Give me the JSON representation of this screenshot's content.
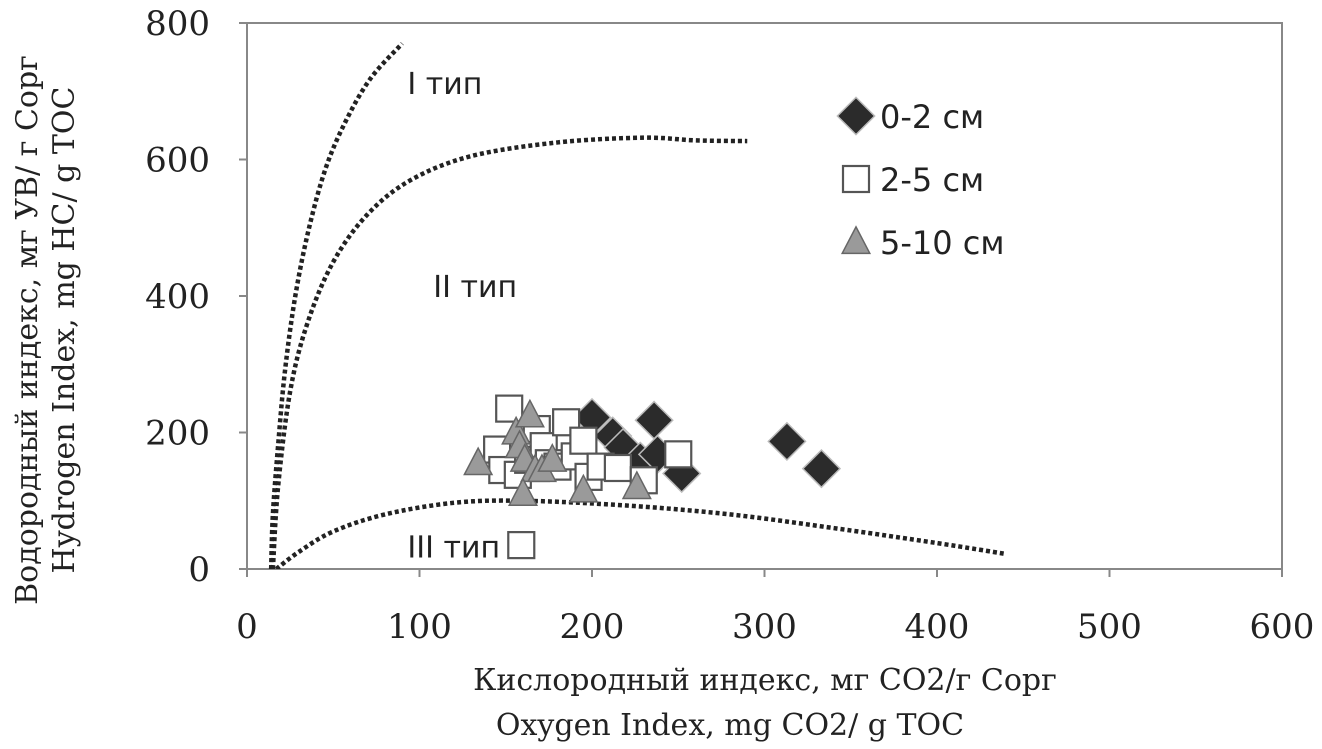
{
  "chart_data": {
    "type": "scatter",
    "xlabel": [
      "Кислородный индекс, мг CO2/г Сорг",
      "Oxygen Index, mg CO2/ g TOC"
    ],
    "ylabel": [
      "Водородный индекс, мг УВ/ г Сорг",
      "Hydrogen Index, mg HC/ g TOC"
    ],
    "xlim": [
      0,
      600
    ],
    "ylim": [
      0,
      800
    ],
    "x_ticks": [
      0,
      100,
      200,
      300,
      400,
      500,
      600
    ],
    "y_ticks": [
      0,
      200,
      400,
      600,
      800
    ],
    "x_tick_labels": [
      "0",
      "100",
      "200",
      "300",
      "400",
      "500",
      "600"
    ],
    "y_tick_labels": [
      "0",
      "200",
      "400",
      "600",
      "800"
    ],
    "grid": false,
    "legend_position": "upper-right",
    "annotations": [
      {
        "text": "I тип",
        "x": 93,
        "y": 712
      },
      {
        "text": "II тип",
        "x": 108,
        "y": 415
      },
      {
        "text": "III тип",
        "x": 93,
        "y": 33
      }
    ],
    "boundary_curves": [
      {
        "name": "type-I",
        "style": "dotted",
        "points": [
          [
            14,
            0
          ],
          [
            15,
            80
          ],
          [
            18,
            180
          ],
          [
            22,
            290
          ],
          [
            28,
            400
          ],
          [
            36,
            500
          ],
          [
            46,
            590
          ],
          [
            58,
            660
          ],
          [
            72,
            720
          ],
          [
            90,
            770
          ]
        ]
      },
      {
        "name": "type-II",
        "style": "dotted",
        "points": [
          [
            15,
            0
          ],
          [
            18,
            120
          ],
          [
            25,
            260
          ],
          [
            35,
            360
          ],
          [
            50,
            450
          ],
          [
            70,
            520
          ],
          [
            95,
            570
          ],
          [
            130,
            605
          ],
          [
            180,
            625
          ],
          [
            230,
            632
          ],
          [
            260,
            628
          ],
          [
            290,
            627
          ]
        ]
      },
      {
        "name": "type-III",
        "style": "dotted",
        "points": [
          [
            17,
            0
          ],
          [
            30,
            25
          ],
          [
            50,
            55
          ],
          [
            80,
            80
          ],
          [
            120,
            97
          ],
          [
            160,
            100
          ],
          [
            220,
            93
          ],
          [
            280,
            80
          ],
          [
            340,
            60
          ],
          [
            400,
            38
          ],
          [
            440,
            22
          ]
        ]
      }
    ],
    "series": [
      {
        "name": "0-2 см",
        "marker": "diamond",
        "color": "#2b2b2b",
        "points": [
          [
            200,
            222
          ],
          [
            212,
            195
          ],
          [
            218,
            178
          ],
          [
            228,
            158
          ],
          [
            236,
            218
          ],
          [
            238,
            168
          ],
          [
            252,
            140
          ],
          [
            313,
            187
          ],
          [
            333,
            147
          ]
        ]
      },
      {
        "name": "2-5 см",
        "marker": "square",
        "color": "#ffffff",
        "points": [
          [
            145,
            175
          ],
          [
            152,
            235
          ],
          [
            148,
            145
          ],
          [
            157,
            138
          ],
          [
            163,
            160
          ],
          [
            168,
            205
          ],
          [
            172,
            180
          ],
          [
            175,
            155
          ],
          [
            180,
            150
          ],
          [
            185,
            215
          ],
          [
            190,
            165
          ],
          [
            195,
            188
          ],
          [
            198,
            135
          ],
          [
            205,
            150
          ],
          [
            215,
            148
          ],
          [
            230,
            130
          ],
          [
            250,
            168
          ],
          [
            159,
            35
          ]
        ]
      },
      {
        "name": "5-10 см",
        "marker": "triangle",
        "color": "#9a9a9a",
        "points": [
          [
            134,
            155
          ],
          [
            156,
            200
          ],
          [
            158,
            180
          ],
          [
            161,
            160
          ],
          [
            164,
            225
          ],
          [
            167,
            145
          ],
          [
            171,
            145
          ],
          [
            177,
            160
          ],
          [
            160,
            110
          ],
          [
            195,
            115
          ],
          [
            226,
            120
          ]
        ]
      }
    ]
  }
}
